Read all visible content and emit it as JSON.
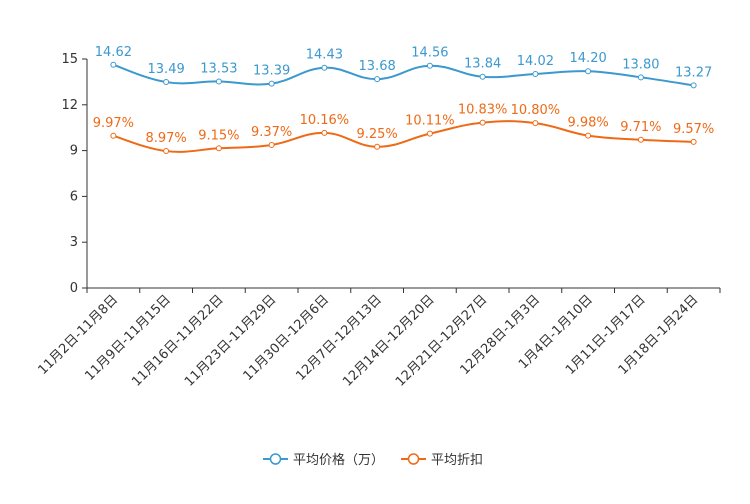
{
  "colors": {
    "price": "#3b99cf",
    "discount": "#ef6a16",
    "axis": "#333333"
  },
  "chart_data": {
    "type": "line",
    "title": "",
    "xlabel": "",
    "ylabel": "",
    "ylim": [
      0,
      15
    ],
    "yticks": [
      "0",
      "3",
      "6",
      "9",
      "12",
      "15"
    ],
    "categories": [
      "11月2日-11月8日",
      "11月9日-11月15日",
      "11月16日-11月22日",
      "11月23日-11月29日",
      "11月30日-12月6日",
      "12月7日-12月13日",
      "12月14日-12月20日",
      "12月21日-12月27日",
      "12月28日-1月3日",
      "1月4日-1月10日",
      "1月11日-1月17日",
      "1月18日-1月24日"
    ],
    "series": [
      {
        "name": "平均价格（万）",
        "values": [
          14.62,
          13.49,
          13.53,
          13.39,
          14.43,
          13.68,
          14.56,
          13.84,
          14.02,
          14.2,
          13.8,
          13.27
        ],
        "labels": [
          "14.62",
          "13.49",
          "13.53",
          "13.39",
          "14.43",
          "13.68",
          "14.56",
          "13.84",
          "14.02",
          "14.20",
          "13.80",
          "13.27"
        ]
      },
      {
        "name": "平均折扣",
        "values": [
          9.97,
          8.97,
          9.15,
          9.37,
          10.16,
          9.25,
          10.11,
          10.83,
          10.8,
          9.98,
          9.71,
          9.57
        ],
        "labels": [
          "9.97%",
          "8.97%",
          "9.15%",
          "9.37%",
          "10.16%",
          "9.25%",
          "10.11%",
          "10.83%",
          "10.80%",
          "9.98%",
          "9.71%",
          "9.57%"
        ]
      }
    ],
    "legend": "bottom-center",
    "grid": false
  }
}
